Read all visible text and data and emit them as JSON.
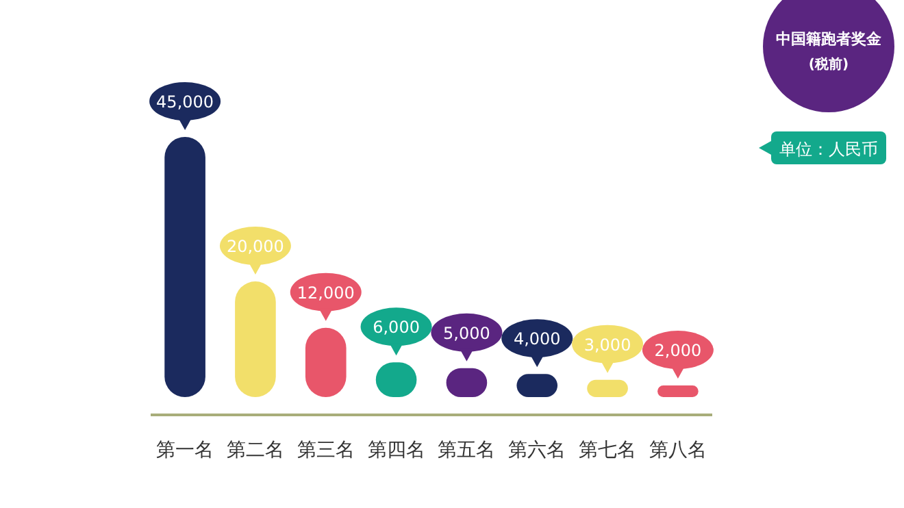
{
  "chart_data": {
    "type": "bar",
    "title": "中国籍跑者奖金",
    "subtitle": "(税前)",
    "annotations": [
      "单位：人民币"
    ],
    "categories": [
      "第一名",
      "第二名",
      "第三名",
      "第四名",
      "第五名",
      "第六名",
      "第七名",
      "第八名"
    ],
    "values": [
      45000,
      20000,
      12000,
      6000,
      5000,
      4000,
      3000,
      2000
    ],
    "value_labels": [
      "45,000",
      "20,000",
      "12,000",
      "6,000",
      "5,000",
      "4,000",
      "3,000",
      "2,000"
    ],
    "colors": [
      "#1b2a5e",
      "#f2df6a",
      "#e8566a",
      "#13a98c",
      "#5a2580",
      "#1b2a5e",
      "#f2df6a",
      "#e8566a"
    ]
  }
}
